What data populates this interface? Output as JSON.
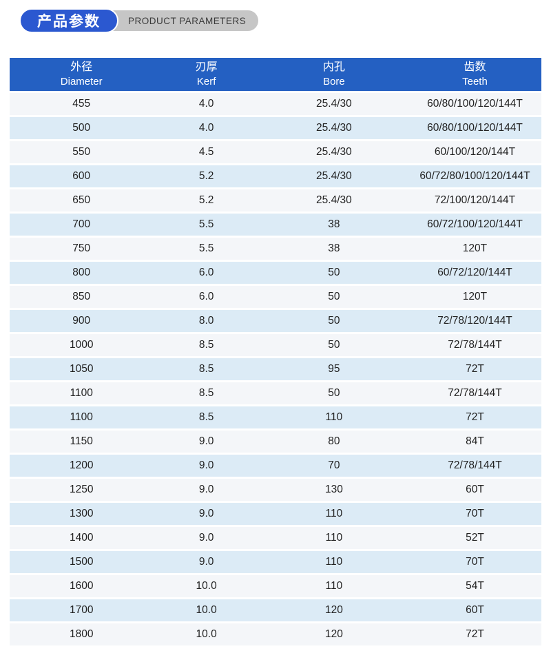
{
  "badge": {
    "title_zh": "产品参数",
    "title_en": "PRODUCT PARAMETERS"
  },
  "colors": {
    "badge_blue": "#2b58d0",
    "badge_gray": "#c6c6c6",
    "header_blue": "#2460c2",
    "row_light": "#f4f6f9",
    "row_blue": "#dcebf6",
    "text_dark": "#222222",
    "header_text": "#ffffff"
  },
  "table": {
    "columns": [
      {
        "zh": "外径",
        "en": "Diameter"
      },
      {
        "zh": "刃厚",
        "en": "Kerf"
      },
      {
        "zh": "内孔",
        "en": "Bore"
      },
      {
        "zh": "齿数",
        "en": "Teeth"
      }
    ],
    "rows": [
      [
        "455",
        "4.0",
        "25.4/30",
        "60/80/100/120/144T"
      ],
      [
        "500",
        "4.0",
        "25.4/30",
        "60/80/100/120/144T"
      ],
      [
        "550",
        "4.5",
        "25.4/30",
        "60/100/120/144T"
      ],
      [
        "600",
        "5.2",
        "25.4/30",
        "60/72/80/100/120/144T"
      ],
      [
        "650",
        "5.2",
        "25.4/30",
        "72/100/120/144T"
      ],
      [
        "700",
        "5.5",
        "38",
        "60/72/100/120/144T"
      ],
      [
        "750",
        "5.5",
        "38",
        "120T"
      ],
      [
        "800",
        "6.0",
        "50",
        "60/72/120/144T"
      ],
      [
        "850",
        "6.0",
        "50",
        "120T"
      ],
      [
        "900",
        "8.0",
        "50",
        "72/78/120/144T"
      ],
      [
        "1000",
        "8.5",
        "50",
        "72/78/144T"
      ],
      [
        "1050",
        "8.5",
        "95",
        "72T"
      ],
      [
        "1100",
        "8.5",
        "50",
        "72/78/144T"
      ],
      [
        "1100",
        "8.5",
        "110",
        "72T"
      ],
      [
        "1150",
        "9.0",
        "80",
        "84T"
      ],
      [
        "1200",
        "9.0",
        "70",
        "72/78/144T"
      ],
      [
        "1250",
        "9.0",
        "130",
        "60T"
      ],
      [
        "1300",
        "9.0",
        "110",
        "70T"
      ],
      [
        "1400",
        "9.0",
        "110",
        "52T"
      ],
      [
        "1500",
        "9.0",
        "110",
        "70T"
      ],
      [
        "1600",
        "10.0",
        "110",
        "54T"
      ],
      [
        "1700",
        "10.0",
        "120",
        "60T"
      ],
      [
        "1800",
        "10.0",
        "120",
        "72T"
      ]
    ]
  }
}
